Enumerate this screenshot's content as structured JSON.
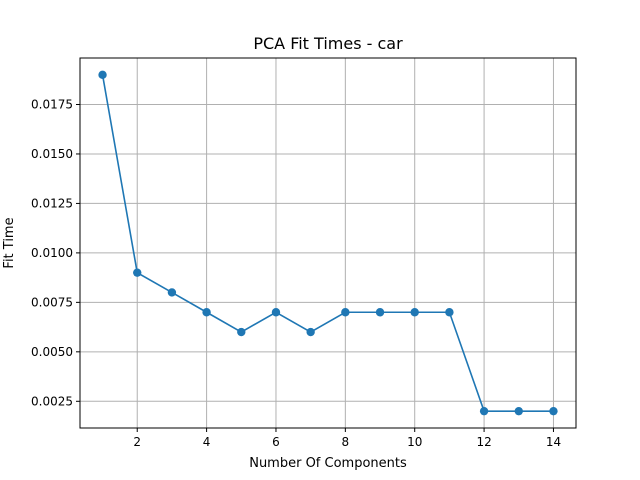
{
  "chart_data": {
    "type": "line",
    "title": "PCA Fit Times - car",
    "xlabel": "Number Of Components",
    "ylabel": "Fit Time",
    "x": [
      1,
      2,
      3,
      4,
      5,
      6,
      7,
      8,
      9,
      10,
      11,
      12,
      13,
      14
    ],
    "series": [
      {
        "values": [
          0.019,
          0.009,
          0.008,
          0.007,
          0.006,
          0.007,
          0.006,
          0.007,
          0.007,
          0.007,
          0.007,
          0.002,
          0.002,
          0.002
        ],
        "color": "#1f77b4",
        "marker": "circle"
      }
    ],
    "xticks": [
      2,
      4,
      6,
      8,
      10,
      12,
      14
    ],
    "xtick_labels": [
      "2",
      "4",
      "6",
      "8",
      "10",
      "12",
      "14"
    ],
    "yticks": [
      0.0025,
      0.005,
      0.0075,
      0.01,
      0.0125,
      0.015,
      0.0175
    ],
    "ytick_labels": [
      "0.0025",
      "0.0050",
      "0.0075",
      "0.0100",
      "0.0125",
      "0.0150",
      "0.0175"
    ],
    "xlim": [
      0.35,
      14.65
    ],
    "ylim": [
      0.00115,
      0.01985
    ],
    "grid": true
  }
}
